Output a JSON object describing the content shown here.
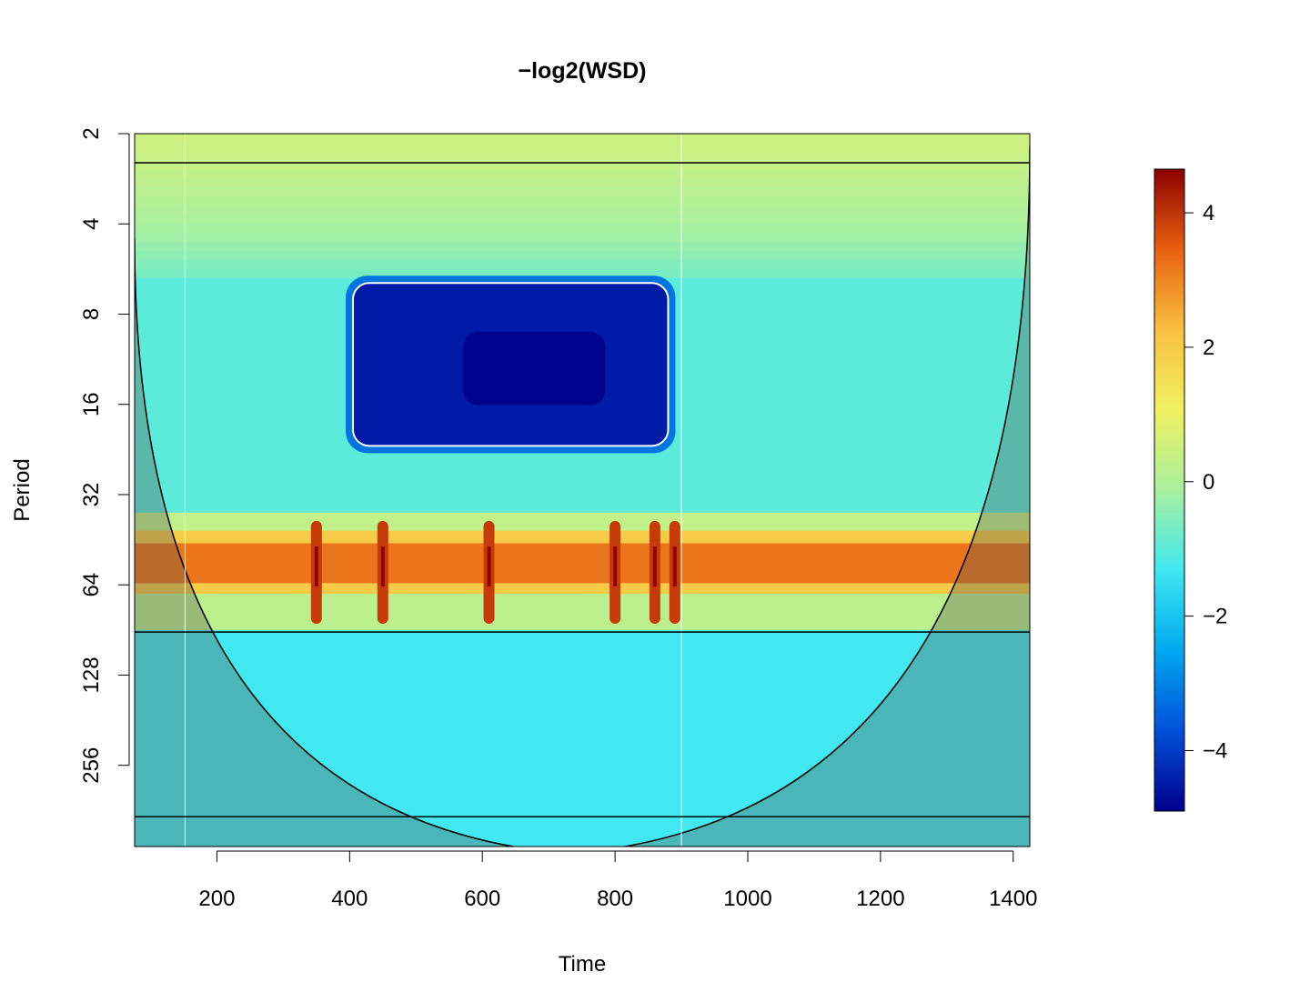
{
  "chart_data": {
    "type": "heatmap",
    "title": "−log2(WSD)",
    "xlabel": "Time",
    "ylabel": "Period",
    "x_ticks": [
      "200",
      "400",
      "600",
      "800",
      "1000",
      "1200",
      "1400"
    ],
    "y_ticks": [
      "2",
      "4",
      "8",
      "16",
      "32",
      "64",
      "128",
      "256"
    ],
    "xlim": [
      76,
      1425
    ],
    "ylim_log2": [
      1,
      8.9
    ],
    "colorbar": {
      "ticks": [
        "−4",
        "−2",
        "0",
        "2",
        "4"
      ],
      "range": [
        -4.9,
        4.65
      ],
      "colors": [
        "#00008B",
        "#0050D8",
        "#00A8F0",
        "#40E8F0",
        "#A8F0A0",
        "#F0F060",
        "#F8C040",
        "#E86010",
        "#8B0000"
      ]
    },
    "features": {
      "low_region": {
        "time": [
          405,
          880
        ],
        "period": [
          6.3,
          22
        ],
        "value": -4.5
      },
      "high_band": {
        "period": [
          42,
          70
        ],
        "value": 3.2,
        "peaks_time": [
          350,
          450,
          610,
          800,
          860,
          890
        ]
      },
      "cone_of_influence": true,
      "reference_lines_time": [
        152,
        900
      ],
      "reference_lines_period": [
        2.5,
        92,
        380
      ]
    }
  }
}
